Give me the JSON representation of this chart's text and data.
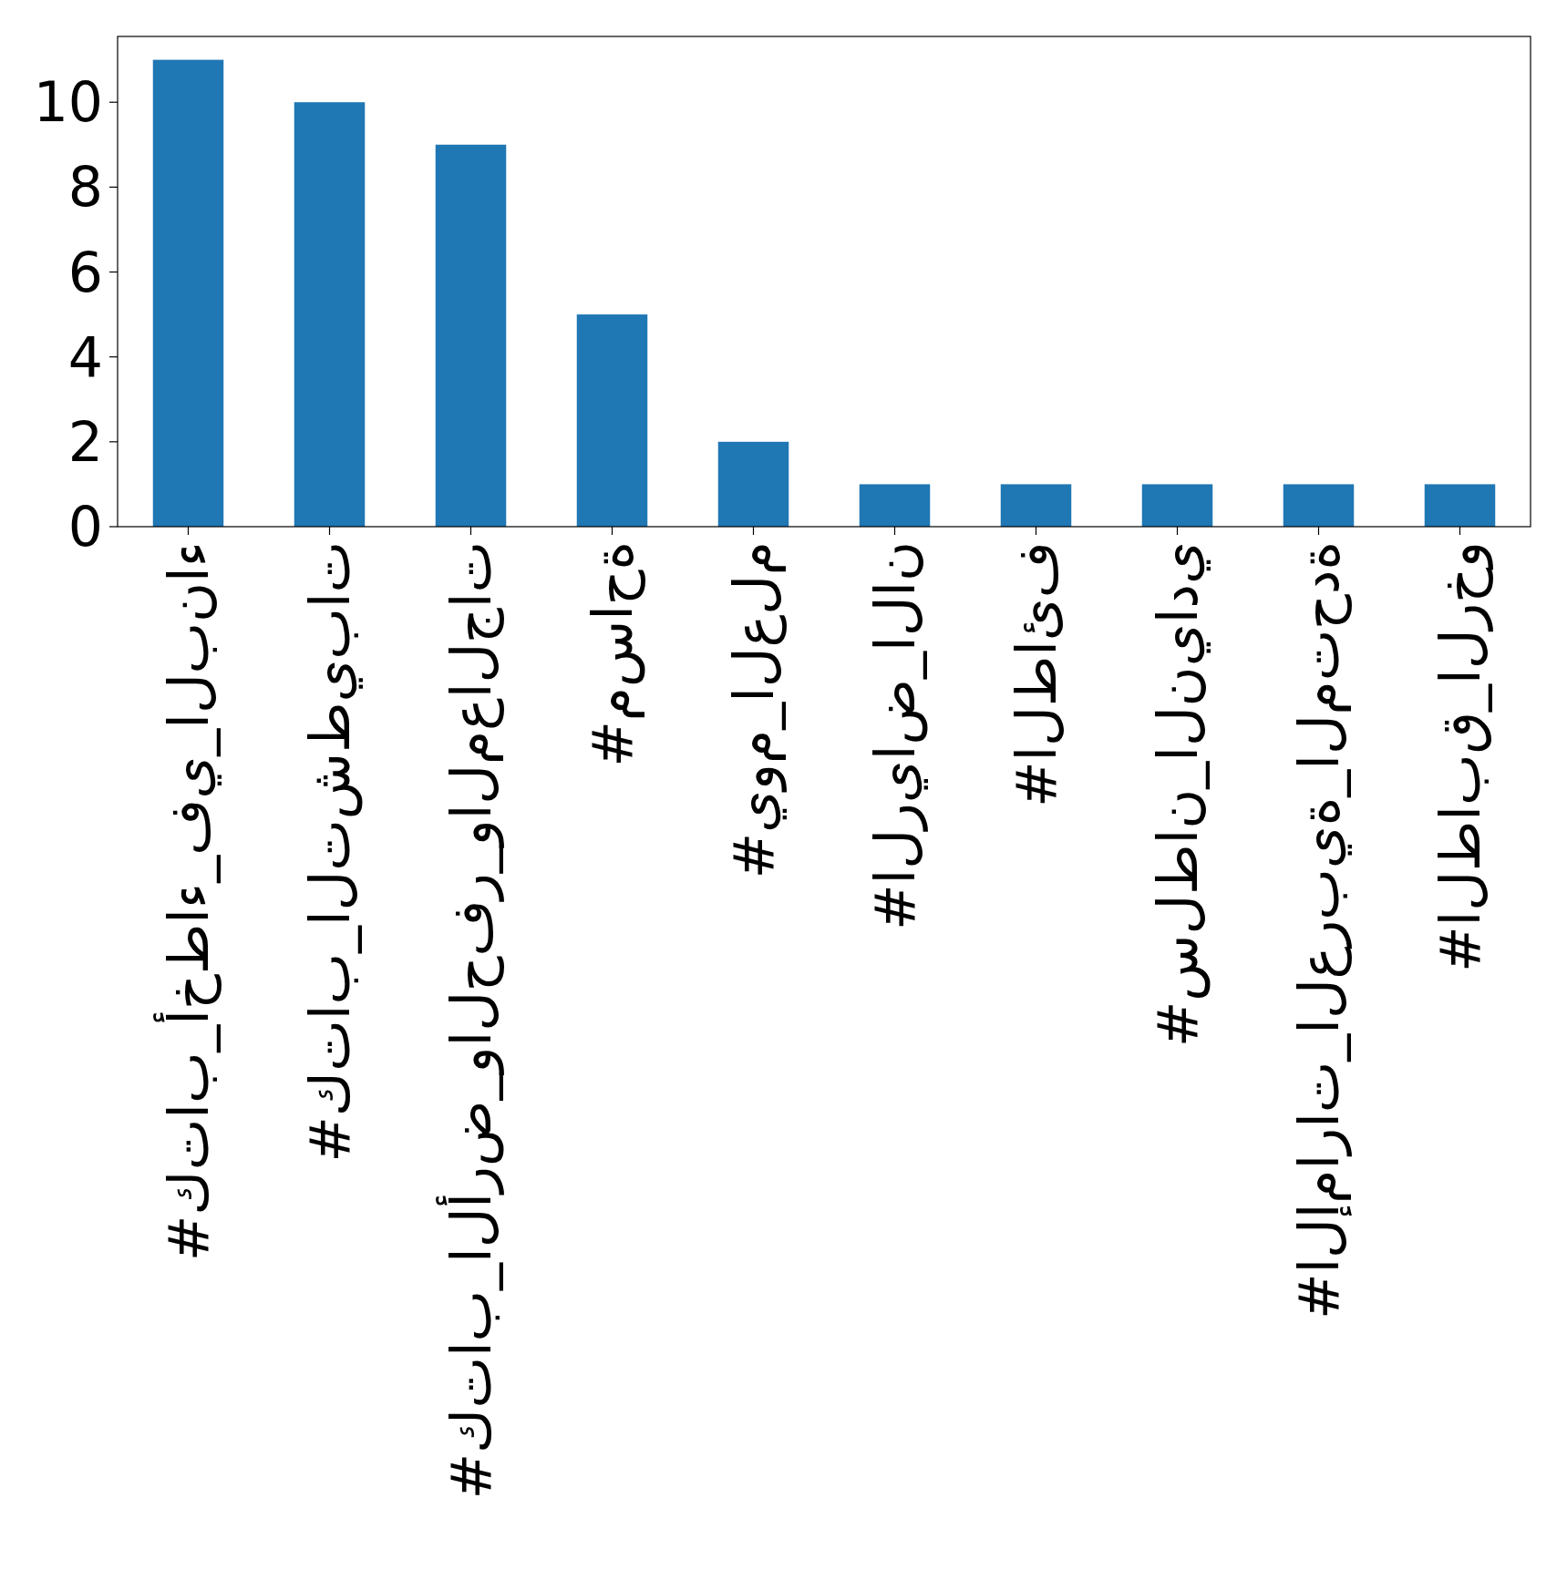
{
  "chart_data": {
    "type": "bar",
    "categories": [
      "#كتاب_أخطاء_في_البناء",
      "#كتاب_التشطيبات",
      "#كتاب_الأرض_والحفر_والمعالجات",
      "#مساحة",
      "#يوم_العلم",
      "#الرياض_الان",
      "#الطائف",
      "#سلطان_النيادي",
      "#الإمارات_العربية_المتحدة",
      "#الطابق_الرخو"
    ],
    "values": [
      11,
      10,
      9,
      5,
      2,
      1,
      1,
      1,
      1,
      1
    ],
    "color": "#1f77b4",
    "ylim": [
      0,
      11.55
    ],
    "yticks": [
      0,
      2,
      4,
      6,
      8,
      10
    ],
    "grid": false,
    "legend": false
  }
}
